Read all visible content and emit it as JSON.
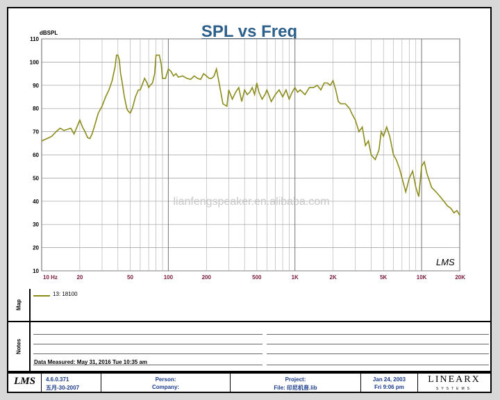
{
  "chart_data": {
    "type": "line",
    "title": "SPL vs Freq",
    "ylabel": "dBSPL",
    "xlabel": "",
    "x_scale": "log",
    "xlim": [
      10,
      20000
    ],
    "ylim": [
      10,
      110
    ],
    "grid": true,
    "x_ticks": [
      "10 Hz",
      "20",
      "50",
      "100",
      "200",
      "500",
      "1K",
      "2K",
      "5K",
      "10K",
      "20K"
    ],
    "x_tick_values": [
      10,
      20,
      50,
      100,
      200,
      500,
      1000,
      2000,
      5000,
      10000,
      20000
    ],
    "y_ticks": [
      10,
      20,
      30,
      40,
      50,
      60,
      70,
      80,
      90,
      100,
      110
    ],
    "watermark": "lianfengspeaker.en.alibaba.com",
    "plot_logo": "LMS",
    "line_color": "#8b8b1a",
    "series": [
      {
        "name": "13: 18100",
        "x": [
          10,
          11,
          12,
          13,
          14,
          15,
          16,
          17,
          18,
          19,
          20,
          21,
          22,
          23,
          24,
          25,
          26,
          28,
          30,
          32,
          34,
          36,
          38,
          39,
          40,
          41,
          42,
          43,
          45,
          47,
          48,
          50,
          52,
          55,
          58,
          60,
          62,
          65,
          68,
          70,
          72,
          75,
          78,
          80,
          85,
          88,
          90,
          95,
          100,
          105,
          110,
          115,
          120,
          130,
          140,
          150,
          160,
          170,
          180,
          190,
          200,
          210,
          220,
          230,
          240,
          250,
          270,
          290,
          300,
          320,
          340,
          360,
          380,
          400,
          420,
          440,
          460,
          480,
          500,
          520,
          550,
          580,
          600,
          650,
          700,
          750,
          800,
          850,
          900,
          950,
          1000,
          1050,
          1100,
          1200,
          1300,
          1400,
          1500,
          1600,
          1700,
          1800,
          1900,
          2000,
          2100,
          2200,
          2300,
          2500,
          2700,
          2800,
          3000,
          3200,
          3400,
          3600,
          3800,
          4000,
          4300,
          4600,
          4800,
          5000,
          5300,
          5600,
          6000,
          6300,
          6700,
          7000,
          7500,
          8000,
          8500,
          9000,
          9500,
          10000,
          10500,
          11000,
          12000,
          13000,
          14000,
          15000,
          16000,
          17000,
          18000,
          19000,
          20000
        ],
        "values": [
          66,
          67,
          68,
          70,
          71.5,
          70.5,
          71,
          71.5,
          69,
          72,
          75,
          72,
          70,
          67.5,
          67,
          69,
          72,
          78,
          81,
          85,
          88,
          92,
          98,
          103,
          103,
          101,
          95,
          92,
          85,
          80,
          79,
          78,
          80,
          85,
          88,
          88,
          90,
          93,
          91,
          89,
          90,
          91,
          95,
          103,
          103,
          99,
          93,
          93,
          97,
          96,
          94,
          95,
          93.5,
          94,
          93,
          92.5,
          94,
          93,
          92.5,
          95,
          94,
          93,
          93,
          94,
          97,
          92,
          82,
          81,
          88,
          84,
          87,
          89,
          83,
          88,
          86,
          87,
          89,
          86,
          91,
          87,
          84,
          86,
          88,
          83,
          86,
          88,
          85,
          88,
          84,
          87,
          89,
          87,
          88,
          86,
          89,
          89,
          90,
          88,
          91,
          91,
          90,
          92,
          88,
          83,
          82,
          82,
          80,
          78,
          75,
          70,
          72,
          64,
          66,
          60,
          58,
          62,
          70,
          68,
          72,
          68,
          60,
          58,
          54,
          50,
          44,
          50,
          53,
          46,
          42,
          55,
          57,
          52,
          46,
          44,
          42,
          40,
          38,
          37,
          35,
          36,
          34
        ]
      }
    ]
  },
  "map": {
    "label": "Map",
    "legend_entry": "13: 18100"
  },
  "notes": {
    "label": "Notes",
    "data_measured": "Data Measured: May 31, 2016  Tue 10:35 am"
  },
  "footer": {
    "logo": "LMS",
    "version": "4.6.0.371",
    "version_date": "五月-30-2007",
    "person": "Person:",
    "company": "Company:",
    "project": "Project:",
    "file": "File: 印尼机音.lib",
    "date": "Jan 24, 2003",
    "time": "Fri  9:06 pm",
    "brand_top": "LINEARX",
    "brand_sub": "SYSTEMS"
  }
}
